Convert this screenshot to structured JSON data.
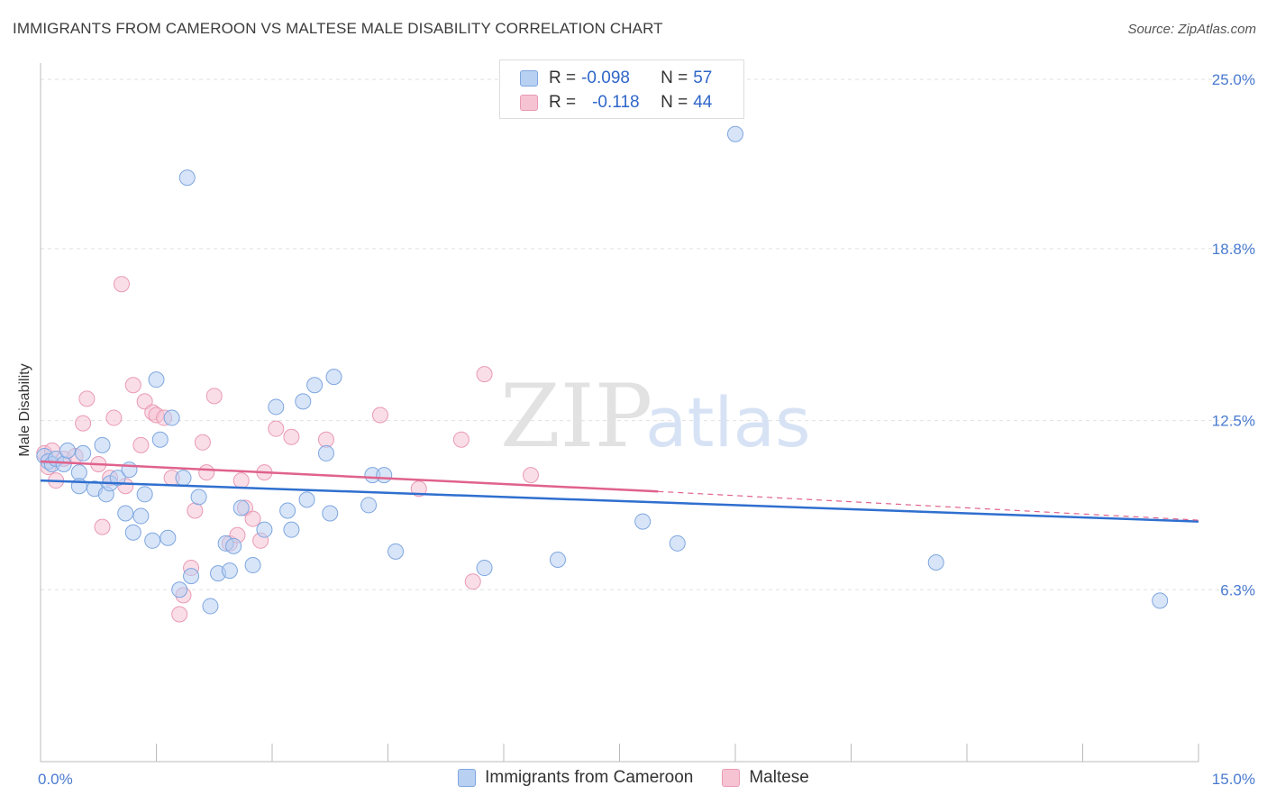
{
  "title": "IMMIGRANTS FROM CAMEROON VS MALTESE MALE DISABILITY CORRELATION CHART",
  "source": "Source: ZipAtlas.com",
  "watermark": {
    "zip": "ZIP",
    "atlas": "atlas"
  },
  "legend": {
    "rows": [
      {
        "r_label": "R = ",
        "r_value": "-0.098",
        "n_label": "N = ",
        "n_value": "57"
      },
      {
        "r_label": "R = ",
        "r_value": "-0.118",
        "n_label": "N = ",
        "n_value": "44"
      }
    ]
  },
  "colors": {
    "blue_fill": "#b8d0f2",
    "blue_stroke": "#7ea6e0",
    "blue_line": "#2f6fcf",
    "pink_fill": "#f6c3d3",
    "pink_stroke": "#e99ab4",
    "pink_line": "#e0628c",
    "tick_text": "#4a7bd0",
    "grid": "#e0e0e0"
  },
  "chart_data": {
    "type": "scatter",
    "xlabel": "",
    "ylabel": "Male Disability",
    "xlim": [
      0,
      15
    ],
    "ylim": [
      0,
      25.6
    ],
    "x_ticks": [
      0,
      1.5,
      3,
      4.5,
      6,
      7.5,
      9,
      10.5,
      12,
      13.5,
      15
    ],
    "x_tick_labels": [
      {
        "value": 0,
        "label": "0.0%"
      },
      {
        "value": 15,
        "label": "15.0%"
      }
    ],
    "y_ticks": [
      {
        "value": 6.3,
        "label": "6.3%"
      },
      {
        "value": 12.5,
        "label": "12.5%"
      },
      {
        "value": 18.8,
        "label": "18.8%"
      },
      {
        "value": 25.0,
        "label": "25.0%"
      }
    ],
    "grid": "horizontal dashed",
    "legend_position": "bottom",
    "series": [
      {
        "name": "Immigrants from Cameroon",
        "color": "#b8d0f2",
        "trend": {
          "x0": 0,
          "y0": 10.3,
          "x1": 15,
          "y1": 8.8
        },
        "points": [
          [
            0.05,
            11.2
          ],
          [
            0.1,
            11.0
          ],
          [
            0.15,
            10.9
          ],
          [
            0.2,
            11.1
          ],
          [
            0.3,
            10.9
          ],
          [
            0.35,
            11.4
          ],
          [
            0.5,
            10.6
          ],
          [
            0.55,
            11.3
          ],
          [
            0.5,
            10.1
          ],
          [
            0.7,
            10.0
          ],
          [
            0.8,
            11.6
          ],
          [
            0.85,
            9.8
          ],
          [
            0.9,
            10.2
          ],
          [
            1.0,
            10.4
          ],
          [
            1.15,
            10.7
          ],
          [
            1.1,
            9.1
          ],
          [
            1.2,
            8.4
          ],
          [
            1.3,
            9.0
          ],
          [
            1.35,
            9.8
          ],
          [
            1.45,
            8.1
          ],
          [
            1.5,
            14.0
          ],
          [
            1.55,
            11.8
          ],
          [
            1.65,
            8.2
          ],
          [
            1.7,
            12.6
          ],
          [
            1.8,
            6.3
          ],
          [
            1.85,
            10.4
          ],
          [
            1.9,
            21.4
          ],
          [
            1.95,
            6.8
          ],
          [
            2.05,
            9.7
          ],
          [
            2.2,
            5.7
          ],
          [
            2.3,
            6.9
          ],
          [
            2.4,
            8.0
          ],
          [
            2.45,
            7.0
          ],
          [
            2.5,
            7.9
          ],
          [
            2.6,
            9.3
          ],
          [
            2.75,
            7.2
          ],
          [
            2.9,
            8.5
          ],
          [
            3.05,
            13.0
          ],
          [
            3.2,
            9.2
          ],
          [
            3.25,
            8.5
          ],
          [
            3.4,
            13.2
          ],
          [
            3.45,
            9.6
          ],
          [
            3.55,
            13.8
          ],
          [
            3.7,
            11.3
          ],
          [
            3.75,
            9.1
          ],
          [
            3.8,
            14.1
          ],
          [
            4.25,
            9.4
          ],
          [
            4.3,
            10.5
          ],
          [
            4.45,
            10.5
          ],
          [
            4.6,
            7.7
          ],
          [
            5.75,
            7.1
          ],
          [
            6.7,
            7.4
          ],
          [
            7.8,
            8.8
          ],
          [
            8.25,
            8.0
          ],
          [
            9.0,
            23.0
          ],
          [
            11.6,
            7.3
          ],
          [
            14.5,
            5.9
          ]
        ]
      },
      {
        "name": "Maltese",
        "color": "#f6c3d3",
        "trend": {
          "x0": 0,
          "y0": 11.0,
          "x1": 8.0,
          "y1": 9.9,
          "dash_to_x": 15,
          "dash_to_y": 8.85
        },
        "points": [
          [
            0.05,
            11.3
          ],
          [
            0.1,
            10.8
          ],
          [
            0.15,
            11.4
          ],
          [
            0.2,
            10.3
          ],
          [
            0.3,
            11.1
          ],
          [
            0.45,
            11.2
          ],
          [
            0.55,
            12.4
          ],
          [
            0.6,
            13.3
          ],
          [
            0.75,
            10.9
          ],
          [
            0.8,
            8.6
          ],
          [
            0.9,
            10.4
          ],
          [
            0.95,
            12.6
          ],
          [
            1.05,
            17.5
          ],
          [
            1.1,
            10.1
          ],
          [
            1.2,
            13.8
          ],
          [
            1.3,
            11.6
          ],
          [
            1.35,
            13.2
          ],
          [
            1.45,
            12.8
          ],
          [
            1.5,
            12.7
          ],
          [
            1.6,
            12.6
          ],
          [
            1.7,
            10.4
          ],
          [
            1.8,
            5.4
          ],
          [
            1.85,
            6.1
          ],
          [
            1.95,
            7.1
          ],
          [
            2.0,
            9.2
          ],
          [
            2.1,
            11.7
          ],
          [
            2.15,
            10.6
          ],
          [
            2.25,
            13.4
          ],
          [
            2.45,
            8.0
          ],
          [
            2.55,
            8.3
          ],
          [
            2.6,
            10.3
          ],
          [
            2.65,
            9.3
          ],
          [
            2.75,
            8.9
          ],
          [
            2.85,
            8.1
          ],
          [
            2.9,
            10.6
          ],
          [
            3.05,
            12.2
          ],
          [
            3.25,
            11.9
          ],
          [
            3.7,
            11.8
          ],
          [
            4.4,
            12.7
          ],
          [
            4.9,
            10.0
          ],
          [
            5.45,
            11.8
          ],
          [
            5.6,
            6.6
          ],
          [
            5.75,
            14.2
          ],
          [
            6.35,
            10.5
          ]
        ]
      }
    ]
  }
}
